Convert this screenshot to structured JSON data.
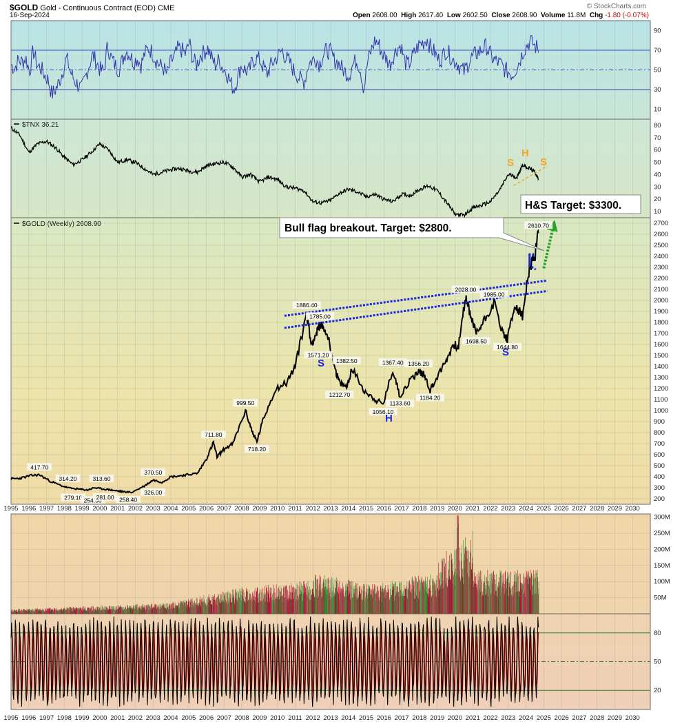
{
  "header": {
    "symbol": "$GOLD",
    "description": "Gold - Continuous Contract (EOD)",
    "exchange": "CME",
    "date": "16-Sep-2024",
    "brand": "© StockCharts.com",
    "open_label": "Open",
    "open": "2608.00",
    "high_label": "High",
    "high": "2617.40",
    "low_label": "Low",
    "low": "2602.50",
    "close_label": "Close",
    "close": "2608.90",
    "volume_label": "Volume",
    "volume": "11.8M",
    "chg_label": "Chg",
    "chg": "-1.80 (-0.07%)"
  },
  "colors": {
    "rsi_line": "#3333aa",
    "price_line": "#000000",
    "channel": "#1a28e0",
    "target_arrow": "#2ca02c",
    "hs_tnx": "#f5a623",
    "hs_gold": "#1a28e0",
    "volume_up": "#2e8b2e",
    "volume_down": "#b0103a",
    "stoch_line": "#b00000"
  },
  "chart_data": [
    {
      "type": "line",
      "panel": "rsi",
      "yticks": [
        90,
        70,
        50,
        30,
        10
      ],
      "ylim": [
        0,
        100
      ],
      "reference_lines": [
        70,
        50,
        30
      ],
      "series": [
        {
          "values": [
            55,
            52,
            60,
            58,
            62,
            48,
            70,
            55,
            52,
            45,
            40,
            25,
            30,
            38,
            50,
            62,
            48,
            40,
            35,
            30,
            42,
            55,
            65,
            58,
            50,
            48,
            75,
            62,
            55,
            50,
            60,
            70,
            65,
            58,
            62,
            55,
            66,
            72,
            68,
            60,
            55,
            52,
            45,
            58,
            63,
            72,
            70,
            66,
            78,
            60,
            55,
            65,
            68,
            72,
            62,
            55,
            60,
            52,
            48,
            38,
            30,
            42,
            55,
            50,
            48,
            58,
            62,
            60,
            52,
            46,
            55,
            60,
            65,
            70,
            62,
            58,
            50,
            45,
            40,
            38,
            55,
            60,
            62,
            56,
            65,
            70,
            68,
            60,
            58,
            52,
            48,
            45,
            55,
            60,
            52,
            30,
            58,
            70,
            80,
            76,
            66,
            62,
            55,
            65,
            72,
            75,
            58,
            55,
            62,
            70,
            76,
            78,
            82,
            72,
            68,
            60,
            62,
            70,
            66,
            60,
            58,
            52,
            48,
            56,
            62,
            66,
            68,
            72,
            74,
            66,
            60,
            58,
            55,
            50,
            48,
            45,
            52,
            60,
            70,
            76,
            80,
            74,
            72
          ]
        }
      ]
    },
    {
      "type": "line",
      "panel": "tnx",
      "legend": "$TNX 36.21",
      "yticks": [
        80,
        70,
        60,
        50,
        40,
        30,
        20,
        10
      ],
      "ylim": [
        5,
        85
      ],
      "x": [
        1995.0,
        1995.5,
        1996.0,
        1996.5,
        1997.0,
        1997.5,
        1998.0,
        1998.5,
        1999.0,
        1999.5,
        2000.0,
        2000.5,
        2001.0,
        2001.5,
        2002.0,
        2002.5,
        2003.0,
        2003.5,
        2004.0,
        2004.5,
        2005.0,
        2005.5,
        2006.0,
        2006.5,
        2007.0,
        2007.5,
        2008.0,
        2008.5,
        2009.0,
        2009.5,
        2010.0,
        2010.5,
        2011.0,
        2011.5,
        2012.0,
        2012.5,
        2013.0,
        2013.5,
        2014.0,
        2014.5,
        2015.0,
        2015.5,
        2016.0,
        2016.5,
        2017.0,
        2017.5,
        2018.0,
        2018.5,
        2019.0,
        2019.5,
        2020.0,
        2020.5,
        2021.0,
        2021.5,
        2022.0,
        2022.5,
        2023.0,
        2023.5,
        2023.8,
        2024.2,
        2024.5,
        2024.7
      ],
      "series": [
        {
          "values": [
            78,
            72,
            58,
            65,
            67,
            62,
            54,
            48,
            52,
            58,
            65,
            60,
            50,
            52,
            50,
            45,
            40,
            42,
            44,
            45,
            43,
            42,
            47,
            49,
            50,
            46,
            38,
            40,
            34,
            38,
            36,
            30,
            29,
            27,
            18,
            17,
            19,
            25,
            28,
            26,
            22,
            24,
            20,
            18,
            24,
            23,
            28,
            31,
            27,
            18,
            8,
            7,
            13,
            15,
            18,
            27,
            40,
            38,
            48,
            45,
            42,
            36.21
          ]
        }
      ]
    },
    {
      "type": "line",
      "panel": "price",
      "title": "Gold - Continuous Contract (EOD)",
      "legend": "$GOLD (Weekly) 2608.90",
      "xlabel": "",
      "ylabel": "",
      "ylim": [
        150,
        2750
      ],
      "yticks": [
        2700,
        2600,
        2500,
        2400,
        2300,
        2200,
        2100,
        2000,
        1900,
        1800,
        1700,
        1600,
        1500,
        1400,
        1300,
        1200,
        1100,
        1000,
        900,
        800,
        700,
        600,
        500,
        400,
        300,
        200
      ],
      "categories": [
        "1995",
        "1996",
        "1997",
        "1998",
        "1999",
        "2000",
        "2001",
        "2002",
        "2003",
        "2004",
        "2005",
        "2006",
        "2007",
        "2008",
        "2009",
        "2010",
        "2011",
        "2012",
        "2013",
        "2014",
        "2015",
        "2016",
        "2017",
        "2018",
        "2019",
        "2020",
        "2021",
        "2022",
        "2023",
        "2024",
        "2025",
        "2026",
        "2027",
        "2028",
        "2029",
        "2030"
      ],
      "x": [
        1995.0,
        1995.5,
        1996.1,
        1996.6,
        1997.2,
        1997.8,
        1998.3,
        1998.9,
        1999.3,
        1999.7,
        2000.1,
        2000.6,
        2001.0,
        2001.3,
        2001.8,
        2002.5,
        2003.0,
        2003.5,
        2004.0,
        2004.6,
        2005.0,
        2005.5,
        2006.0,
        2006.4,
        2006.6,
        2007.0,
        2007.5,
        2008.2,
        2008.6,
        2008.85,
        2009.2,
        2009.9,
        2010.5,
        2011.0,
        2011.65,
        2011.9,
        2012.2,
        2012.4,
        2012.8,
        2013.3,
        2013.5,
        2013.9,
        2014.2,
        2014.9,
        2015.5,
        2015.95,
        2016.5,
        2016.9,
        2017.5,
        2017.95,
        2018.3,
        2018.6,
        2018.95,
        2019.5,
        2019.9,
        2020.2,
        2020.6,
        2020.9,
        2021.2,
        2021.6,
        2022.2,
        2022.7,
        2022.95,
        2023.4,
        2023.8,
        2024.2,
        2024.5,
        2024.7
      ],
      "series": [
        {
          "values": [
            380,
            385,
            410,
            417,
            360,
            320,
            296,
            286,
            279,
            300,
            290,
            281,
            270,
            265,
            258,
            315,
            370,
            350,
            400,
            410,
            420,
            430,
            560,
            711,
            580,
            650,
            700,
            999,
            800,
            718,
            920,
            1200,
            1250,
            1400,
            1886,
            1600,
            1700,
            1785,
            1700,
            1350,
            1250,
            1212,
            1380,
            1180,
            1100,
            1056,
            1367,
            1133,
            1280,
            1356,
            1320,
            1184,
            1290,
            1450,
            1600,
            1580,
            2028,
            1850,
            1698,
            1810,
            1985,
            1700,
            1644,
            1960,
            1850,
            2300,
            2400,
            2610
          ]
        }
      ],
      "labels": [
        {
          "text": "417.70",
          "x": 1996.6,
          "y": 417
        },
        {
          "text": "314.20",
          "x": 1998.2,
          "y": 314
        },
        {
          "text": "279.10",
          "x": 1998.5,
          "y": 279
        },
        {
          "text": "254.50",
          "x": 1999.6,
          "y": 254
        },
        {
          "text": "313.60",
          "x": 2000.1,
          "y": 313
        },
        {
          "text": "281.00",
          "x": 2000.3,
          "y": 281
        },
        {
          "text": "258.40",
          "x": 2001.6,
          "y": 258
        },
        {
          "text": "370.50",
          "x": 2003.0,
          "y": 370
        },
        {
          "text": "326.00",
          "x": 2003.0,
          "y": 326
        },
        {
          "text": "711.80",
          "x": 2006.4,
          "y": 711
        },
        {
          "text": "999.50",
          "x": 2008.2,
          "y": 999
        },
        {
          "text": "718.20",
          "x": 2008.85,
          "y": 718
        },
        {
          "text": "1886.40",
          "x": 2011.65,
          "y": 1886
        },
        {
          "text": "1785.00",
          "x": 2012.4,
          "y": 1785
        },
        {
          "text": "1571.20",
          "x": 2012.3,
          "y": 1571
        },
        {
          "text": "1382.50",
          "x": 2013.9,
          "y": 1382
        },
        {
          "text": "1212.70",
          "x": 2013.5,
          "y": 1212
        },
        {
          "text": "1367.40",
          "x": 2016.5,
          "y": 1367
        },
        {
          "text": "1356.20",
          "x": 2017.95,
          "y": 1356
        },
        {
          "text": "1133.60",
          "x": 2016.9,
          "y": 1133
        },
        {
          "text": "1056.10",
          "x": 2015.95,
          "y": 1056
        },
        {
          "text": "1184.20",
          "x": 2018.6,
          "y": 1184
        },
        {
          "text": "2028.00",
          "x": 2020.6,
          "y": 2028
        },
        {
          "text": "1985.00",
          "x": 2022.2,
          "y": 1985
        },
        {
          "text": "1698.50",
          "x": 2021.2,
          "y": 1698
        },
        {
          "text": "1644.80",
          "x": 2022.95,
          "y": 1644
        },
        {
          "text": "2610.70",
          "x": 2024.7,
          "y": 2610
        }
      ]
    },
    {
      "type": "bar",
      "panel": "volume",
      "yticks": [
        "300M",
        "250M",
        "200M",
        "150M",
        "100M",
        "50M"
      ],
      "ytick_values": [
        300,
        250,
        200,
        150,
        100,
        50
      ],
      "ylim": [
        0,
        310
      ]
    },
    {
      "type": "line",
      "panel": "stochastic",
      "yticks": [
        80,
        50,
        20
      ],
      "ylim": [
        0,
        100
      ],
      "reference_lines": [
        80,
        50,
        20
      ]
    }
  ],
  "annotations": {
    "bull_flag": "Bull flag breakout.  Target: $2800.",
    "hs_target": "H&S Target: $3300.",
    "tnx_s1": "S",
    "tnx_h": "H",
    "tnx_s2": "S",
    "gold_s1": "S",
    "gold_h": "H",
    "gold_s2": "S"
  }
}
